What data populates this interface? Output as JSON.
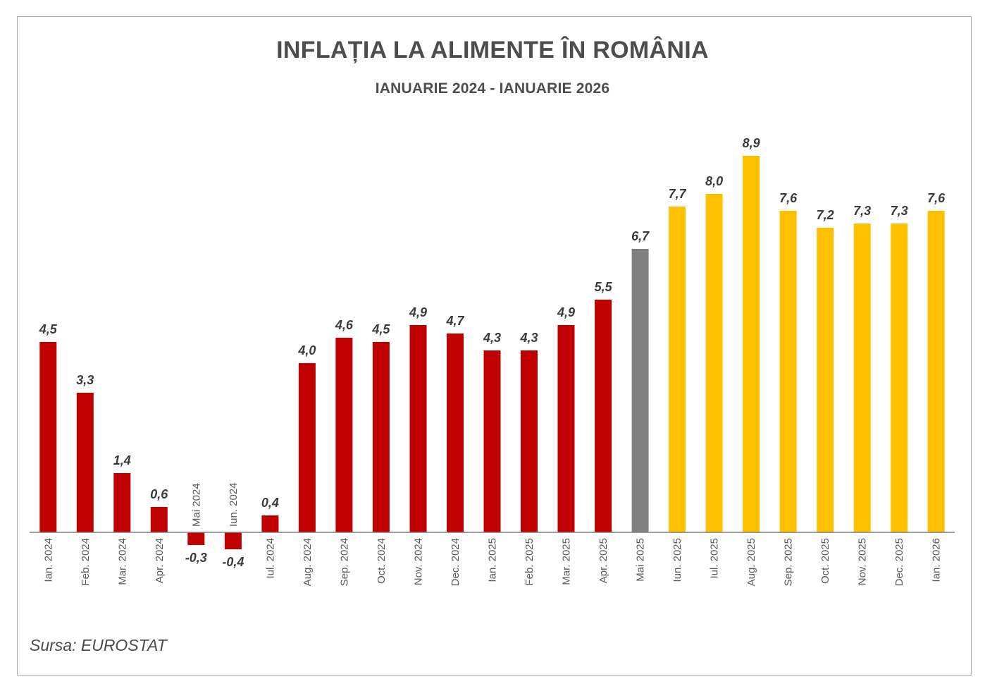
{
  "title": "INFLAȚIA LA ALIMENTE ÎN ROMÂNIA",
  "subtitle": "IANUARIE 2024 - IANUARIE 2026",
  "source": "Sursa: EUROSTAT",
  "colors": {
    "red": "#c00000",
    "gray": "#808080",
    "yellow": "#ffc000",
    "label": "#3a3a3a",
    "axis": "#7f7f7f",
    "tick_label": "#595959"
  },
  "chart_data": {
    "type": "bar",
    "title": "INFLAȚIA LA ALIMENTE ÎN ROMÂNIA",
    "subtitle": "IANUARIE 2024 - IANUARIE 2026",
    "xlabel": "",
    "ylabel": "",
    "ylim": [
      -0.7,
      9.8
    ],
    "grid": false,
    "legend": "none",
    "categories": [
      "Ian. 2024",
      "Feb. 2024",
      "Mar. 2024",
      "Apr. 2024",
      "Mai 2024",
      "Iun. 2024",
      "Iul. 2024",
      "Aug. 2024",
      "Sep. 2024",
      "Oct. 2024",
      "Nov. 2024",
      "Dec. 2024",
      "Ian. 2025",
      "Feb. 2025",
      "Mar. 2025",
      "Apr. 2025",
      "Mai 2025",
      "Iun. 2025",
      "Iul. 2025",
      "Aug. 2025",
      "Sep. 2025",
      "Oct. 2025",
      "Nov. 2025",
      "Dec. 2025",
      "Ian. 2026"
    ],
    "values": [
      4.5,
      3.3,
      1.4,
      0.6,
      -0.3,
      -0.4,
      0.4,
      4.0,
      4.6,
      4.5,
      4.9,
      4.7,
      4.3,
      4.3,
      4.9,
      5.5,
      6.7,
      7.7,
      8.0,
      8.9,
      7.6,
      7.2,
      7.3,
      7.3,
      7.6
    ],
    "value_labels": [
      "4,5",
      "3,3",
      "1,4",
      "0,6",
      "-0,3",
      "-0,4",
      "0,4",
      "4,0",
      "4,6",
      "4,5",
      "4,9",
      "4,7",
      "4,3",
      "4,3",
      "4,9",
      "5,5",
      "6,7",
      "7,7",
      "8,0",
      "8,9",
      "7,6",
      "7,2",
      "7,3",
      "7,3",
      "7,6"
    ],
    "bar_colors": [
      "red",
      "red",
      "red",
      "red",
      "red",
      "red",
      "red",
      "red",
      "red",
      "red",
      "red",
      "red",
      "red",
      "red",
      "red",
      "red",
      "gray",
      "yellow",
      "yellow",
      "yellow",
      "yellow",
      "yellow",
      "yellow",
      "yellow",
      "yellow"
    ]
  }
}
